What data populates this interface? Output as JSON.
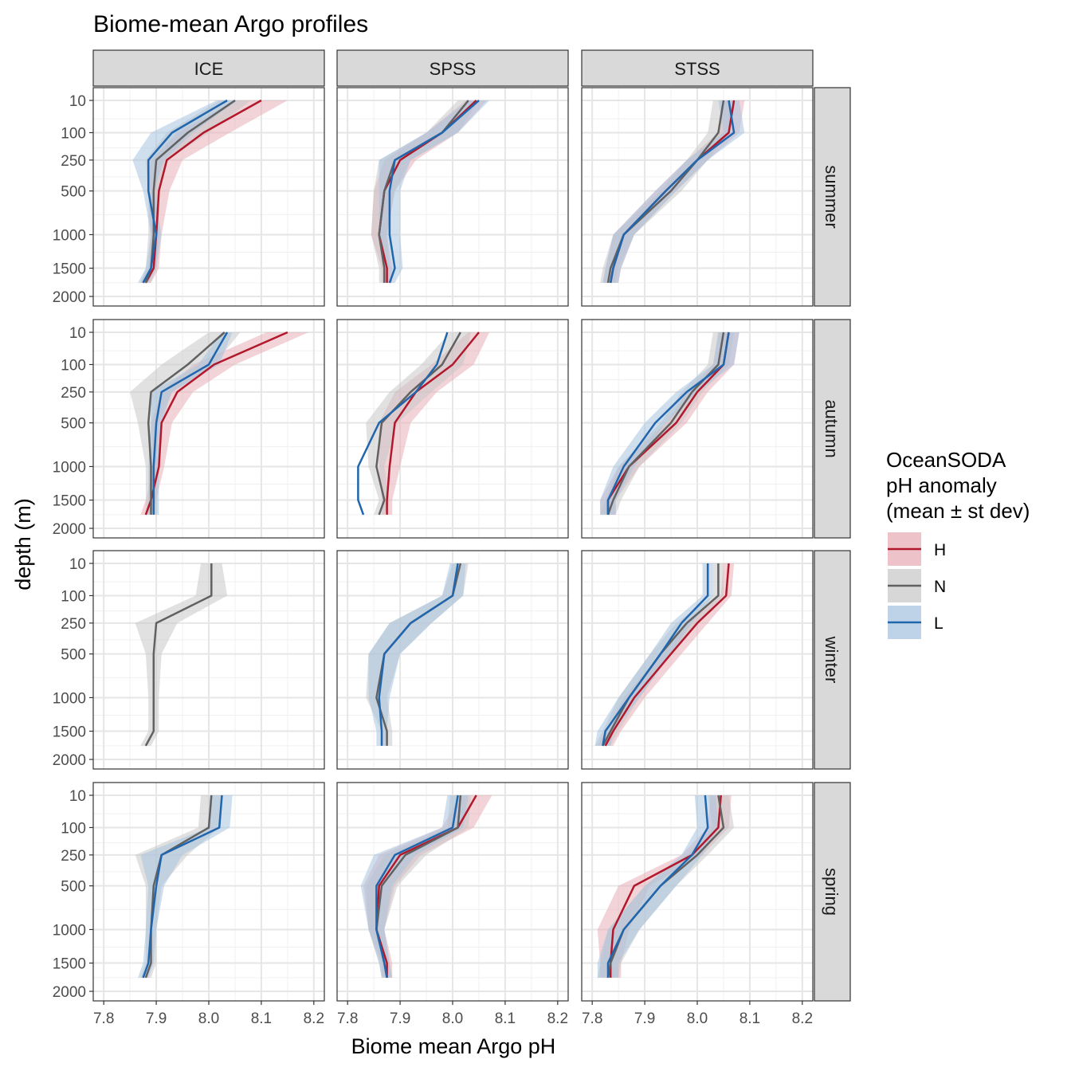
{
  "chart_data": {
    "type": "line",
    "title": "Biome-mean Argo profiles",
    "xlabel": "Biome mean Argo pH",
    "ylabel": "depth (m)",
    "xlim": [
      7.78,
      8.22
    ],
    "ylim_sqrt_depth": [
      0,
      2000
    ],
    "x_ticks": [
      7.8,
      7.9,
      8.0,
      8.1,
      8.2
    ],
    "x_tick_labels": [
      "7.8",
      "7.9",
      "8.0",
      "8.1",
      "8.2"
    ],
    "y_ticks": [
      10,
      100,
      250,
      500,
      1000,
      1500,
      2000
    ],
    "y_tick_labels": [
      "10",
      "100",
      "250",
      "500",
      "1000",
      "1500",
      "2000"
    ],
    "columns": [
      "ICE",
      "SPSS",
      "STSS"
    ],
    "rows": [
      "summer",
      "autumn",
      "winter",
      "spring"
    ],
    "depths": [
      10,
      100,
      250,
      500,
      1000,
      1500,
      1750
    ],
    "legend": {
      "title": [
        "OceanSODA",
        "pH anomaly",
        "(mean ± st dev)"
      ],
      "items": [
        {
          "key": "H",
          "label": "H",
          "color": "#b2182b",
          "fill": "#e7aeb7"
        },
        {
          "key": "N",
          "label": "N",
          "color": "#616161",
          "fill": "#c9c9c9"
        },
        {
          "key": "L",
          "label": "L",
          "color": "#2166ac",
          "fill": "#a9c4e0"
        }
      ]
    },
    "panels": [
      {
        "row": "summer",
        "col": "ICE",
        "series": [
          {
            "name": "H",
            "mean": [
              8.1,
              7.99,
              7.92,
              7.905,
              7.9,
              7.895,
              7.88
            ],
            "sd": [
              0.05,
              0.05,
              0.03,
              0.02,
              0.01,
              0.01,
              0.01
            ]
          },
          {
            "name": "N",
            "mean": [
              8.05,
              7.96,
              7.9,
              7.895,
              7.895,
              7.89,
              7.88
            ],
            "sd": [
              0.03,
              0.04,
              0.02,
              0.01,
              0.01,
              0.01,
              0.01
            ]
          },
          {
            "name": "L",
            "mean": [
              8.035,
              7.93,
              7.885,
              7.885,
              7.9,
              7.89,
              7.875
            ],
            "sd": [
              0.02,
              0.04,
              0.03,
              0.01,
              0.01,
              0.01,
              0.01
            ]
          }
        ]
      },
      {
        "row": "summer",
        "col": "SPSS",
        "series": [
          {
            "name": "H",
            "mean": [
              8.045,
              7.98,
              7.9,
              7.87,
              7.86,
              7.875,
              7.875
            ],
            "sd": [
              0.02,
              0.03,
              0.03,
              0.02,
              0.015,
              0.01,
              0.01
            ]
          },
          {
            "name": "N",
            "mean": [
              8.03,
              7.98,
              7.89,
              7.87,
              7.86,
              7.87,
              7.87
            ],
            "sd": [
              0.02,
              0.03,
              0.03,
              0.02,
              0.015,
              0.01,
              0.01
            ]
          },
          {
            "name": "L",
            "mean": [
              8.05,
              7.98,
              7.89,
              7.88,
              7.88,
              7.89,
              7.88
            ],
            "sd": [
              0.02,
              0.03,
              0.03,
              0.02,
              0.02,
              0.015,
              0.01
            ]
          }
        ]
      },
      {
        "row": "summer",
        "col": "STSS",
        "series": [
          {
            "name": "H",
            "mean": [
              8.07,
              8.06,
              8.0,
              7.94,
              7.86,
              7.84,
              7.835
            ],
            "sd": [
              0.02,
              0.02,
              0.02,
              0.02,
              0.02,
              0.015,
              0.015
            ]
          },
          {
            "name": "N",
            "mean": [
              8.05,
              8.04,
              8.0,
              7.95,
              7.86,
              7.835,
              7.83
            ],
            "sd": [
              0.02,
              0.02,
              0.02,
              0.02,
              0.02,
              0.015,
              0.015
            ]
          },
          {
            "name": "L",
            "mean": [
              8.06,
              8.07,
              8.0,
              7.94,
              7.86,
              7.84,
              7.835
            ],
            "sd": [
              0.02,
              0.02,
              0.02,
              0.02,
              0.02,
              0.015,
              0.015
            ]
          }
        ]
      },
      {
        "row": "autumn",
        "col": "ICE",
        "series": [
          {
            "name": "H",
            "mean": [
              8.15,
              8.01,
              7.94,
              7.91,
              7.905,
              7.89,
              7.88
            ],
            "sd": [
              0.04,
              0.04,
              0.03,
              0.02,
              0.01,
              0.01,
              0.01
            ]
          },
          {
            "name": "N",
            "mean": [
              8.03,
              7.96,
              7.89,
              7.885,
              7.89,
              7.89,
              7.89
            ],
            "sd": [
              0.03,
              0.05,
              0.04,
              0.02,
              0.01,
              0.01,
              0.01
            ]
          },
          {
            "name": "L",
            "mean": [
              8.035,
              8.0,
              7.91,
              7.9,
              7.895,
              7.895,
              7.895
            ],
            "sd": [
              0.01,
              0.02,
              0.02,
              0.01,
              0.01,
              0.01,
              0.01
            ]
          }
        ]
      },
      {
        "row": "autumn",
        "col": "SPSS",
        "series": [
          {
            "name": "H",
            "mean": [
              8.05,
              8.0,
              7.93,
              7.89,
              7.88,
              7.875,
              7.875
            ],
            "sd": [
              0.02,
              0.04,
              0.04,
              0.03,
              0.02,
              0.01,
              0.01
            ]
          },
          {
            "name": "N",
            "mean": [
              8.015,
              7.98,
              7.92,
              7.865,
              7.855,
              7.87,
              7.86
            ],
            "sd": [
              0.02,
              0.04,
              0.04,
              0.03,
              0.015,
              0.01,
              0.01
            ]
          },
          {
            "name": "L",
            "mean": [
              7.99,
              7.97,
              7.93,
              7.86,
              7.82,
              7.82,
              7.83
            ],
            "sd": [
              0,
              0,
              0,
              0,
              0,
              0,
              0
            ]
          }
        ]
      },
      {
        "row": "autumn",
        "col": "STSS",
        "series": [
          {
            "name": "H",
            "mean": [
              8.06,
              8.05,
              8.0,
              7.96,
              7.87,
              7.83,
              7.83
            ],
            "sd": [
              0.02,
              0.02,
              0.02,
              0.02,
              0.02,
              0.015,
              0.015
            ]
          },
          {
            "name": "N",
            "mean": [
              8.05,
              8.04,
              7.99,
              7.95,
              7.87,
              7.84,
              7.83
            ],
            "sd": [
              0.02,
              0.02,
              0.02,
              0.02,
              0.02,
              0.015,
              0.015
            ]
          },
          {
            "name": "L",
            "mean": [
              8.06,
              8.05,
              7.98,
              7.92,
              7.86,
              7.83,
              7.83
            ],
            "sd": [
              0.02,
              0.02,
              0.02,
              0.02,
              0.02,
              0.015,
              0.015
            ]
          }
        ]
      },
      {
        "row": "winter",
        "col": "ICE",
        "series": [
          {
            "name": "N",
            "mean": [
              8.005,
              8.005,
              7.9,
              7.895,
              7.895,
              7.895,
              7.88
            ],
            "sd": [
              0.02,
              0.03,
              0.04,
              0.015,
              0.01,
              0.01,
              0.01
            ]
          }
        ]
      },
      {
        "row": "winter",
        "col": "SPSS",
        "series": [
          {
            "name": "N",
            "mean": [
              8.015,
              8.0,
              7.92,
              7.87,
              7.855,
              7.875,
              7.875
            ],
            "sd": [
              0.015,
              0.02,
              0.04,
              0.03,
              0.02,
              0.01,
              0.01
            ]
          },
          {
            "name": "L",
            "mean": [
              8.01,
              8.0,
              7.92,
              7.87,
              7.86,
              7.865,
              7.865
            ],
            "sd": [
              0.015,
              0.02,
              0.04,
              0.03,
              0.02,
              0.01,
              0.01
            ]
          }
        ]
      },
      {
        "row": "winter",
        "col": "STSS",
        "series": [
          {
            "name": "H",
            "mean": [
              8.06,
              8.055,
              8.0,
              7.95,
              7.88,
              7.84,
              7.825
            ],
            "sd": [
              0.01,
              0.01,
              0.02,
              0.02,
              0.02,
              0.015,
              0.015
            ]
          },
          {
            "name": "N",
            "mean": [
              8.04,
              8.04,
              7.98,
              7.93,
              7.87,
              7.835,
              7.82
            ],
            "sd": [
              0.01,
              0.01,
              0.02,
              0.02,
              0.02,
              0.015,
              0.015
            ]
          },
          {
            "name": "L",
            "mean": [
              8.02,
              8.02,
              7.97,
              7.93,
              7.87,
              7.825,
              7.82
            ],
            "sd": [
              0.01,
              0.01,
              0.02,
              0.02,
              0.02,
              0.015,
              0.015
            ]
          }
        ]
      },
      {
        "row": "spring",
        "col": "ICE",
        "series": [
          {
            "name": "N",
            "mean": [
              8.005,
              8.0,
              7.91,
              7.895,
              7.89,
              7.89,
              7.88
            ],
            "sd": [
              0.02,
              0.02,
              0.05,
              0.015,
              0.01,
              0.01,
              0.01
            ]
          },
          {
            "name": "L",
            "mean": [
              8.025,
              8.02,
              7.91,
              7.9,
              7.89,
              7.885,
              7.875
            ],
            "sd": [
              0.02,
              0.02,
              0.04,
              0.015,
              0.01,
              0.01,
              0.01
            ]
          }
        ]
      },
      {
        "row": "spring",
        "col": "SPSS",
        "series": [
          {
            "name": "H",
            "mean": [
              8.045,
              8.01,
              7.9,
              7.86,
              7.855,
              7.875,
              7.875
            ],
            "sd": [
              0.03,
              0.03,
              0.04,
              0.03,
              0.015,
              0.01,
              0.01
            ]
          },
          {
            "name": "N",
            "mean": [
              8.015,
              8.01,
              7.91,
              7.865,
              7.855,
              7.87,
              7.875
            ],
            "sd": [
              0.02,
              0.02,
              0.04,
              0.03,
              0.015,
              0.01,
              0.01
            ]
          },
          {
            "name": "L",
            "mean": [
              8.01,
              8.0,
              7.89,
              7.855,
              7.855,
              7.87,
              7.875
            ],
            "sd": [
              0.02,
              0.02,
              0.04,
              0.03,
              0.015,
              0.01,
              0.01
            ]
          }
        ]
      },
      {
        "row": "spring",
        "col": "STSS",
        "series": [
          {
            "name": "H",
            "mean": [
              8.045,
              8.04,
              7.99,
              7.88,
              7.84,
              7.835,
              7.835
            ],
            "sd": [
              0.02,
              0.02,
              0.02,
              0.03,
              0.03,
              0.02,
              0.02
            ]
          },
          {
            "name": "N",
            "mean": [
              8.04,
              8.05,
              8.0,
              7.93,
              7.86,
              7.835,
              7.83
            ],
            "sd": [
              0.02,
              0.02,
              0.02,
              0.03,
              0.03,
              0.02,
              0.02
            ]
          },
          {
            "name": "L",
            "mean": [
              8.015,
              8.02,
              7.99,
              7.93,
              7.86,
              7.83,
              7.83
            ],
            "sd": [
              0.02,
              0.02,
              0.02,
              0.03,
              0.03,
              0.02,
              0.02
            ]
          }
        ]
      }
    ]
  }
}
